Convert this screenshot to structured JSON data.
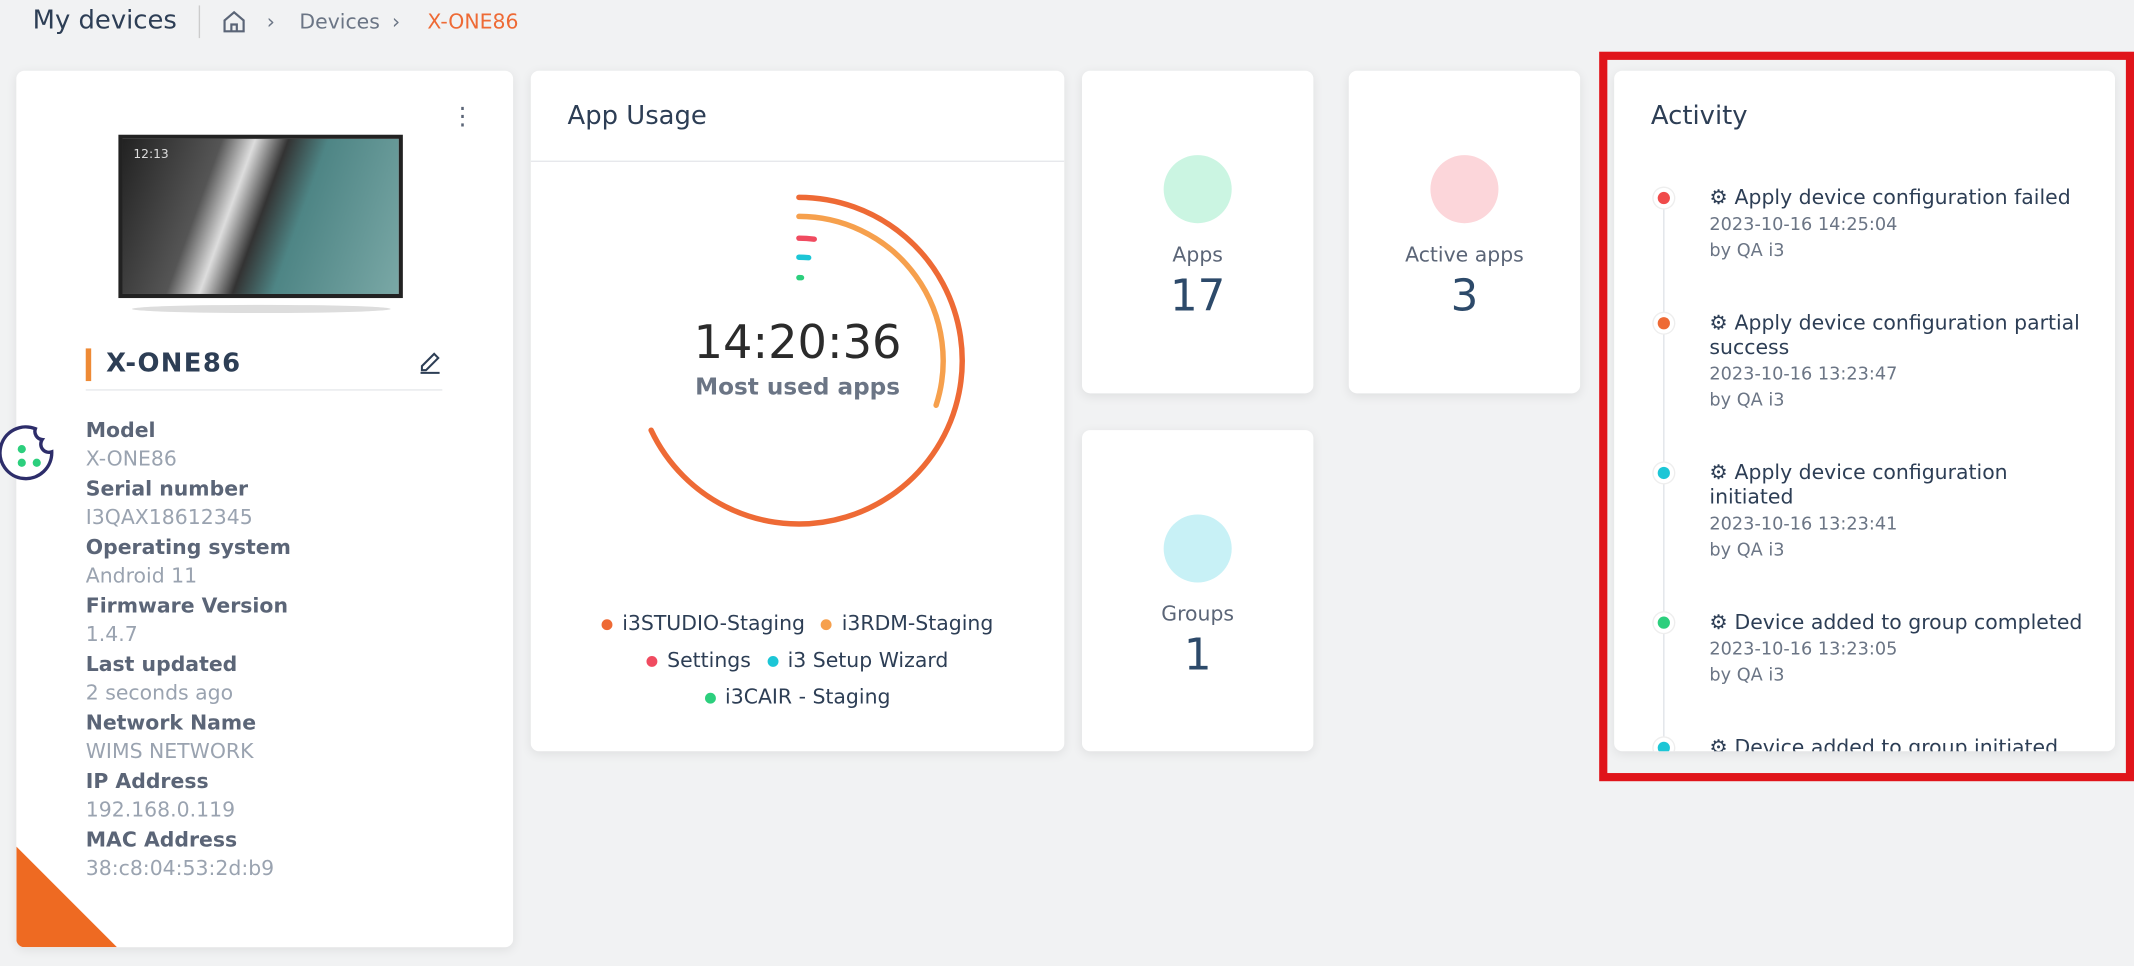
{
  "header": {
    "title": "My devices",
    "breadcrumb": [
      "Devices",
      "X-ONE86"
    ]
  },
  "device": {
    "name": "X-ONE86",
    "screen_time": "12:13",
    "details": [
      {
        "label": "Model",
        "value": "X-ONE86"
      },
      {
        "label": "Serial number",
        "value": "I3QAX18612345"
      },
      {
        "label": "Operating system",
        "value": "Android 11"
      },
      {
        "label": "Firmware Version",
        "value": "1.4.7"
      },
      {
        "label": "Last updated",
        "value": "2 seconds ago"
      },
      {
        "label": "Network Name",
        "value": "WIMS NETWORK"
      },
      {
        "label": "IP Address",
        "value": "192.168.0.119"
      },
      {
        "label": "MAC Address",
        "value": "38:c8:04:53:2d:b9"
      }
    ]
  },
  "app_usage": {
    "title": "App Usage",
    "time": "14:20:36",
    "subtitle": "Most used apps",
    "items": [
      {
        "name": "i3STUDIO-Staging",
        "color": "#ee6a35",
        "value": 68
      },
      {
        "name": "i3RDM-Staging",
        "color": "#f6a04d",
        "value": 30
      },
      {
        "name": "Settings",
        "color": "#f04b60",
        "value": 2
      },
      {
        "name": "i3 Setup Wizard",
        "color": "#1cc6d6",
        "value": 1.5
      },
      {
        "name": "i3CAIR - Staging",
        "color": "#2ccf7d",
        "value": 0.5
      }
    ]
  },
  "stats": [
    {
      "label": "Apps",
      "value": "17"
    },
    {
      "label": "Active apps",
      "value": "3"
    },
    {
      "label": "Groups",
      "value": "1"
    }
  ],
  "activity": {
    "title": "Activity",
    "items": [
      {
        "title": "Apply device configuration failed",
        "date": "2023-10-16 14:25:04",
        "by": "by QA i3",
        "color": "#f04b4b"
      },
      {
        "title": "Apply device configuration partial success",
        "date": "2023-10-16 13:23:47",
        "by": "by QA i3",
        "color": "#ee6a35"
      },
      {
        "title": "Apply device configuration initiated",
        "date": "2023-10-16 13:23:41",
        "by": "by QA i3",
        "color": "#1cc6d6"
      },
      {
        "title": "Device added to group completed",
        "date": "2023-10-16 13:23:05",
        "by": "by QA i3",
        "color": "#2ccf7d"
      },
      {
        "title": "Device added to group initiated",
        "date": "",
        "by": "",
        "color": "#1cc6d6"
      }
    ]
  }
}
